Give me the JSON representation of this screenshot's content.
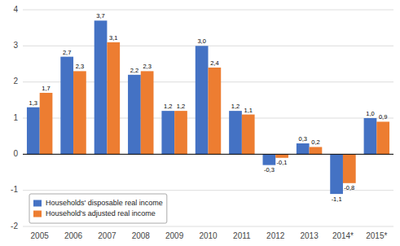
{
  "chart_data": {
    "type": "bar",
    "categories": [
      "2005",
      "2006",
      "2007",
      "2008",
      "2009",
      "2010",
      "2011",
      "2012",
      "2013",
      "2014*",
      "2015*"
    ],
    "series": [
      {
        "name": "Households' disposable real income",
        "color": "#4472C4",
        "values": [
          1.3,
          2.7,
          3.7,
          2.2,
          1.2,
          3.0,
          1.2,
          -0.3,
          0.3,
          -1.1,
          1.0
        ],
        "value_labels": [
          "1,3",
          "2,7",
          "3,7",
          "2,2",
          "1,2",
          "3,0",
          "1,2",
          "-0,3",
          "0,3",
          "-1,1",
          "1,0"
        ]
      },
      {
        "name": "Household's adjusted real income",
        "color": "#ED7D31",
        "values": [
          1.7,
          2.3,
          3.1,
          2.3,
          1.2,
          2.4,
          1.1,
          -0.1,
          0.2,
          -0.8,
          0.9
        ],
        "value_labels": [
          "1,7",
          "2,3",
          "3,1",
          "2,3",
          "1,2",
          "2,4",
          "1,1",
          "-0,1",
          "0,2",
          "-0,8",
          "0,9"
        ]
      }
    ],
    "ylim": [
      -2,
      4
    ],
    "yticks": [
      -2,
      -1,
      0,
      1,
      2,
      3,
      4
    ],
    "grid": true,
    "legend": "lower left",
    "data_labels": true
  }
}
